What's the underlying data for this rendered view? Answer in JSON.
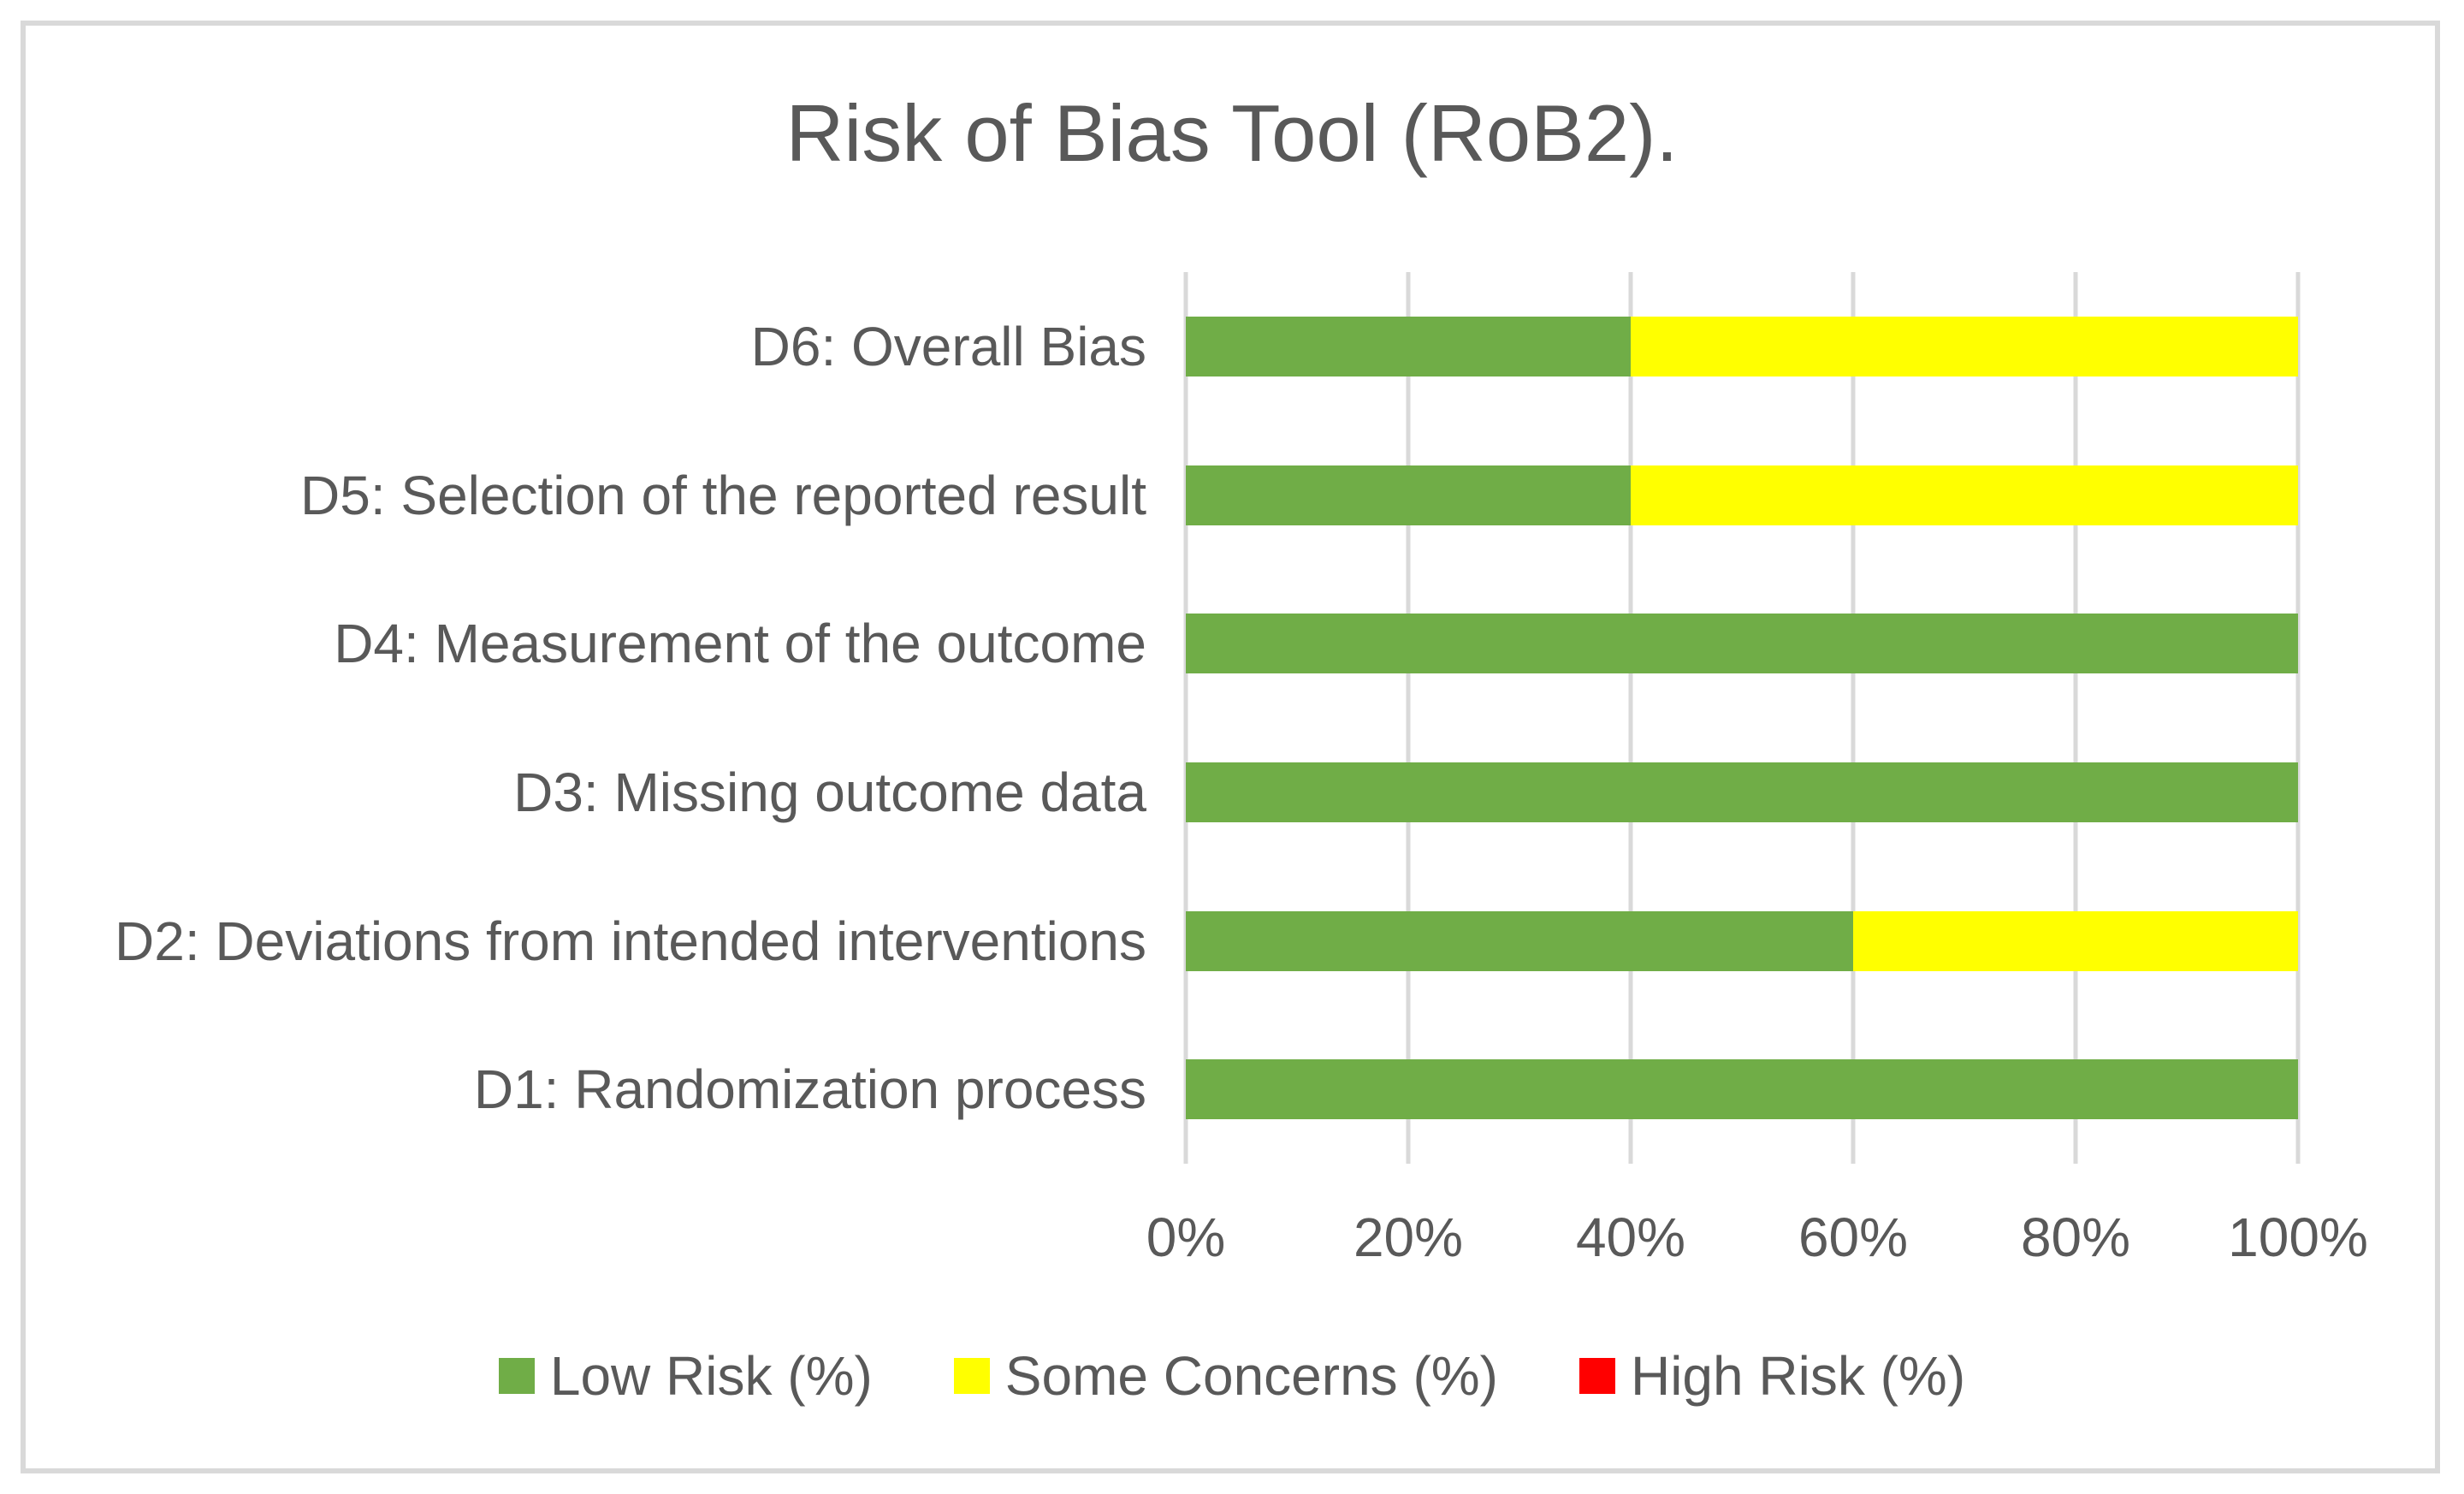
{
  "figure": {
    "background_color": "#FFFFFF",
    "border_color": "#D9D9D9",
    "text_color": "#595959",
    "gridline_color": "#D9D9D9"
  },
  "chart_data": {
    "type": "bar",
    "orientation": "horizontal",
    "stacked": true,
    "title": "Risk of Bias Tool (RoB2).",
    "categories_top_to_bottom": [
      "D6: Overall Bias",
      "D5: Selection of the reported result",
      "D4: Measurement of the outcome",
      "D3: Missing outcome data",
      "D2: Deviations from intended interventions",
      "D1: Randomization process"
    ],
    "series": [
      {
        "name": "Low Risk (%)",
        "color": "#70AD47",
        "values": [
          40,
          40,
          100,
          100,
          60,
          100
        ]
      },
      {
        "name": "Some Concerns (%)",
        "color": "#FFFF00",
        "values": [
          60,
          60,
          0,
          0,
          40,
          0
        ]
      },
      {
        "name": "High Risk (%)",
        "color": "#FF0000",
        "values": [
          0,
          0,
          0,
          0,
          0,
          0
        ]
      }
    ],
    "x_axis": {
      "min": 0,
      "max": 100,
      "tick_labels": [
        "0%",
        "20%",
        "40%",
        "60%",
        "80%",
        "100%"
      ]
    },
    "grid": true,
    "legend_position": "bottom"
  }
}
